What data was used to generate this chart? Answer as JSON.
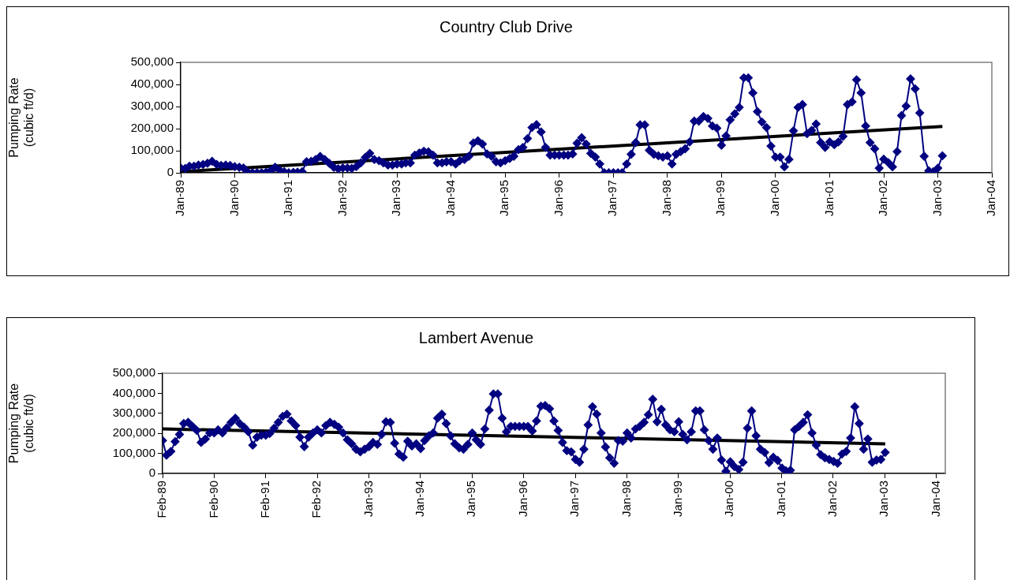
{
  "chart_data": [
    {
      "type": "line",
      "title": "Country Club Drive",
      "ylabel": "Pumping Rate\n(cubic ft/d)",
      "grid": false,
      "legend": false,
      "x": [
        "1989-01",
        "1989-02",
        "1989-03",
        "1989-04",
        "1989-05",
        "1989-06",
        "1989-07",
        "1989-08",
        "1989-09",
        "1989-10",
        "1989-11",
        "1989-12",
        "1990-01",
        "1990-02",
        "1990-03",
        "1990-04",
        "1990-05",
        "1990-06",
        "1990-07",
        "1990-08",
        "1990-09",
        "1990-10",
        "1990-11",
        "1990-12",
        "1991-01",
        "1991-02",
        "1991-03",
        "1991-04",
        "1991-05",
        "1991-06",
        "1991-07",
        "1991-08",
        "1991-09",
        "1991-10",
        "1991-11",
        "1991-12",
        "1992-01",
        "1992-02",
        "1992-03",
        "1992-04",
        "1992-05",
        "1992-06",
        "1992-07",
        "1992-08",
        "1992-09",
        "1992-10",
        "1992-11",
        "1992-12",
        "1993-01",
        "1993-02",
        "1993-03",
        "1993-04",
        "1993-05",
        "1993-06",
        "1993-07",
        "1993-08",
        "1993-09",
        "1993-10",
        "1993-11",
        "1993-12",
        "1994-01",
        "1994-02",
        "1994-03",
        "1994-04",
        "1994-05",
        "1994-06",
        "1994-07",
        "1994-08",
        "1994-09",
        "1994-10",
        "1994-11",
        "1994-12",
        "1995-01",
        "1995-02",
        "1995-03",
        "1995-04",
        "1995-05",
        "1995-06",
        "1995-07",
        "1995-08",
        "1995-09",
        "1995-10",
        "1995-11",
        "1995-12",
        "1996-01",
        "1996-02",
        "1996-03",
        "1996-04",
        "1996-05",
        "1996-06",
        "1996-07",
        "1996-08",
        "1996-09",
        "1996-10",
        "1996-11",
        "1996-12",
        "1997-01",
        "1997-02",
        "1997-03",
        "1997-04",
        "1997-05",
        "1997-06",
        "1997-07",
        "1997-08",
        "1997-09",
        "1997-10",
        "1997-11",
        "1997-12",
        "1998-01",
        "1998-02",
        "1998-03",
        "1998-04",
        "1998-05",
        "1998-06",
        "1998-07",
        "1998-08",
        "1998-09",
        "1998-10",
        "1998-11",
        "1998-12",
        "1999-01",
        "1999-02",
        "1999-03",
        "1999-04",
        "1999-05",
        "1999-06",
        "1999-07",
        "1999-08",
        "1999-09",
        "1999-10",
        "1999-11",
        "1999-12",
        "2000-01",
        "2000-02",
        "2000-03",
        "2000-04",
        "2000-05",
        "2000-06",
        "2000-07",
        "2000-08",
        "2000-09",
        "2000-10",
        "2000-11",
        "2000-12",
        "2001-01",
        "2001-02",
        "2001-03",
        "2001-04",
        "2001-05",
        "2001-06",
        "2001-07",
        "2001-08",
        "2001-09",
        "2001-10",
        "2001-11",
        "2001-12",
        "2002-01",
        "2002-02",
        "2002-03",
        "2002-04",
        "2002-05",
        "2002-06",
        "2002-07",
        "2002-08",
        "2002-09",
        "2002-10",
        "2002-11",
        "2002-12",
        "2003-01",
        "2003-02"
      ],
      "xlim": [
        "1989-01",
        "2004-01"
      ],
      "xticks": [
        {
          "value": "1989-01",
          "label": "Jan-89"
        },
        {
          "value": "1990-01",
          "label": "Jan-90"
        },
        {
          "value": "1991-01",
          "label": "Jan-91"
        },
        {
          "value": "1992-01",
          "label": "Jan-92"
        },
        {
          "value": "1993-01",
          "label": "Jan-93"
        },
        {
          "value": "1994-01",
          "label": "Jan-94"
        },
        {
          "value": "1995-01",
          "label": "Jan-95"
        },
        {
          "value": "1996-01",
          "label": "Jan-96"
        },
        {
          "value": "1997-01",
          "label": "Jan-97"
        },
        {
          "value": "1998-01",
          "label": "Jan-98"
        },
        {
          "value": "1999-01",
          "label": "Jan-99"
        },
        {
          "value": "2000-01",
          "label": "Jan-00"
        },
        {
          "value": "2001-01",
          "label": "Jan-01"
        },
        {
          "value": "2002-01",
          "label": "Jan-02"
        },
        {
          "value": "2003-01",
          "label": "Jan-03"
        },
        {
          "value": "2004-01",
          "label": "Jan-04"
        }
      ],
      "ylim": [
        0,
        500000
      ],
      "yticks": [
        0,
        {
          "value": 100000,
          "label": "100,000"
        },
        {
          "value": 200000,
          "label": "200,000"
        },
        {
          "value": 300000,
          "label": "300,000"
        },
        {
          "value": 400000,
          "label": "400,000"
        },
        {
          "value": 500000,
          "label": "500,000"
        }
      ],
      "series": [
        {
          "color": "#000080",
          "marker": "diamond",
          "values": [
            22000,
            20000,
            30000,
            30000,
            35000,
            38000,
            43000,
            52000,
            38000,
            33000,
            35000,
            33000,
            28000,
            25000,
            22000,
            2000,
            0,
            0,
            0,
            3000,
            10000,
            25000,
            12000,
            5000,
            0,
            2000,
            3000,
            5000,
            50000,
            52000,
            60000,
            74000,
            60000,
            43000,
            25000,
            18000,
            22000,
            22000,
            20000,
            28000,
            45000,
            70000,
            88000,
            60000,
            55000,
            45000,
            35000,
            35000,
            40000,
            40000,
            45000,
            45000,
            80000,
            90000,
            98000,
            95000,
            80000,
            45000,
            45000,
            50000,
            50000,
            40000,
            55000,
            60000,
            75000,
            135000,
            145000,
            130000,
            85000,
            75000,
            50000,
            45000,
            55000,
            65000,
            75000,
            105000,
            115000,
            155000,
            205000,
            218000,
            185000,
            115000,
            80000,
            80000,
            80000,
            80000,
            80000,
            85000,
            134000,
            159000,
            130000,
            88000,
            71000,
            40000,
            0,
            0,
            0,
            0,
            0,
            40000,
            84000,
            137000,
            217000,
            217000,
            102000,
            84000,
            77000,
            71000,
            77000,
            40000,
            84000,
            96000,
            109000,
            140000,
            234000,
            234000,
            255000,
            246000,
            212000,
            202000,
            125000,
            167000,
            240000,
            267000,
            296000,
            430000,
            430000,
            362000,
            277000,
            230000,
            205000,
            121000,
            71000,
            71000,
            27000,
            61000,
            190000,
            296000,
            309000,
            177000,
            192000,
            221000,
            137000,
            115000,
            140000,
            127000,
            140000,
            165000,
            309000,
            321000,
            421000,
            362000,
            212000,
            137000,
            109000,
            21000,
            62000,
            46000,
            27000,
            96000,
            259000,
            302000,
            425000,
            380000,
            271000,
            75000,
            9000,
            5000,
            21000,
            77000
          ]
        },
        {
          "type": "line",
          "color": "#000000",
          "marker": "none",
          "x": [
            "1989-01",
            "2003-02"
          ],
          "values": [
            5000,
            210000
          ]
        }
      ]
    },
    {
      "type": "line",
      "title": "Lambert Avenue",
      "ylabel": "Pumping Rate\n(cubic ft/d)",
      "grid": false,
      "legend": false,
      "x": [
        "1989-02",
        "1989-03",
        "1989-04",
        "1989-05",
        "1989-06",
        "1989-07",
        "1989-08",
        "1989-09",
        "1989-10",
        "1989-11",
        "1989-12",
        "1990-01",
        "1990-02",
        "1990-03",
        "1990-04",
        "1990-05",
        "1990-06",
        "1990-07",
        "1990-08",
        "1990-09",
        "1990-10",
        "1990-11",
        "1990-12",
        "1991-01",
        "1991-02",
        "1991-03",
        "1991-04",
        "1991-05",
        "1991-06",
        "1991-07",
        "1991-08",
        "1991-09",
        "1991-10",
        "1991-11",
        "1991-12",
        "1992-01",
        "1992-02",
        "1992-03",
        "1992-04",
        "1992-05",
        "1992-06",
        "1992-07",
        "1992-08",
        "1992-09",
        "1992-10",
        "1992-11",
        "1992-12",
        "1993-01",
        "1993-02",
        "1993-03",
        "1993-04",
        "1993-05",
        "1993-06",
        "1993-07",
        "1993-08",
        "1993-09",
        "1993-10",
        "1993-11",
        "1993-12",
        "1994-01",
        "1994-02",
        "1994-03",
        "1994-04",
        "1994-05",
        "1994-06",
        "1994-07",
        "1994-08",
        "1994-09",
        "1994-10",
        "1994-11",
        "1994-12",
        "1995-01",
        "1995-02",
        "1995-03",
        "1995-04",
        "1995-05",
        "1995-06",
        "1995-07",
        "1995-08",
        "1995-09",
        "1995-10",
        "1995-11",
        "1995-12",
        "1996-01",
        "1996-02",
        "1996-03",
        "1996-04",
        "1996-05",
        "1996-06",
        "1996-07",
        "1996-08",
        "1996-09",
        "1996-10",
        "1996-11",
        "1996-12",
        "1997-01",
        "1997-02",
        "1997-03",
        "1997-04",
        "1997-05",
        "1997-06",
        "1997-07",
        "1997-08",
        "1997-09",
        "1997-10",
        "1997-11",
        "1997-12",
        "1998-01",
        "1998-02",
        "1998-03",
        "1998-04",
        "1998-05",
        "1998-06",
        "1998-07",
        "1998-08",
        "1998-09",
        "1998-10",
        "1998-11",
        "1998-12",
        "1999-01",
        "1999-02",
        "1999-03",
        "1999-04",
        "1999-05",
        "1999-06",
        "1999-07",
        "1999-08",
        "1999-09",
        "1999-10",
        "1999-11",
        "1999-12",
        "2000-01",
        "2000-02",
        "2000-03",
        "2000-04",
        "2000-05",
        "2000-06",
        "2000-07",
        "2000-08",
        "2000-09",
        "2000-10",
        "2000-11",
        "2000-12",
        "2001-01",
        "2001-02",
        "2001-03",
        "2001-04",
        "2001-05",
        "2001-06",
        "2001-07",
        "2001-08",
        "2001-09",
        "2001-10",
        "2001-11",
        "2001-12",
        "2002-01",
        "2002-02",
        "2002-03",
        "2002-04",
        "2002-05",
        "2002-06",
        "2002-07",
        "2002-08",
        "2002-09",
        "2002-10",
        "2002-11",
        "2002-12",
        "2003-01",
        "2003-02"
      ],
      "xlim": [
        "1989-02-01",
        "2004-04"
      ],
      "xticks": [
        {
          "value": "1989-02-01",
          "label": "Feb-89"
        },
        {
          "value": "1990-02-01",
          "label": "Feb-90"
        },
        {
          "value": "1991-02-01",
          "label": "Feb-91"
        },
        {
          "value": "1992-02-01",
          "label": "Feb-92"
        },
        {
          "value": "1993-01-31",
          "label": "Jan-93"
        },
        {
          "value": "1994-01-31",
          "label": "Jan-94"
        },
        {
          "value": "1995-01-31",
          "label": "Jan-95"
        },
        {
          "value": "1996-01-31",
          "label": "Jan-96"
        },
        {
          "value": "1997-01-30",
          "label": "Jan-97"
        },
        {
          "value": "1998-01-30",
          "label": "Jan-98"
        },
        {
          "value": "1999-01-30",
          "label": "Jan-99"
        },
        {
          "value": "2000-01-30",
          "label": "Jan-00"
        },
        {
          "value": "2001-01-29",
          "label": "Jan-01"
        },
        {
          "value": "2002-01-29",
          "label": "Jan-02"
        },
        {
          "value": "2003-01-29",
          "label": "Jan-03"
        },
        {
          "value": "2004-01-29",
          "label": "Jan-04"
        }
      ],
      "ylim": [
        0,
        500000
      ],
      "yticks": [
        0,
        {
          "value": 100000,
          "label": "100,000"
        },
        {
          "value": 200000,
          "label": "200,000"
        },
        {
          "value": 300000,
          "label": "300,000"
        },
        {
          "value": 400000,
          "label": "400,000"
        },
        {
          "value": 500000,
          "label": "500,000"
        }
      ],
      "series": [
        {
          "color": "#000080",
          "marker": "diamond",
          "values": [
            164000,
            91000,
            110000,
            159000,
            195000,
            249000,
            255000,
            235000,
            215000,
            155000,
            172000,
            202000,
            202000,
            218000,
            202000,
            228000,
            255000,
            276000,
            249000,
            231000,
            208000,
            141000,
            181000,
            191000,
            191000,
            199000,
            226000,
            255000,
            285000,
            296000,
            262000,
            239000,
            181000,
            134000,
            181000,
            202000,
            218000,
            202000,
            239000,
            255000,
            245000,
            231000,
            202000,
            168000,
            148000,
            121000,
            108000,
            121000,
            134000,
            155000,
            145000,
            195000,
            258000,
            255000,
            151000,
            97000,
            81000,
            161000,
            137000,
            148000,
            124000,
            164000,
            188000,
            202000,
            276000,
            296000,
            249000,
            188000,
            148000,
            128000,
            121000,
            145000,
            202000,
            168000,
            145000,
            222000,
            316000,
            397000,
            397000,
            276000,
            208000,
            235000,
            235000,
            235000,
            235000,
            235000,
            212000,
            262000,
            336000,
            339000,
            323000,
            262000,
            215000,
            155000,
            114000,
            108000,
            70000,
            56000,
            121000,
            242000,
            333000,
            296000,
            202000,
            132000,
            78000,
            51000,
            164000,
            161000,
            202000,
            177000,
            222000,
            235000,
            255000,
            293000,
            370000,
            258000,
            320000,
            242000,
            218000,
            208000,
            258000,
            195000,
            168000,
            208000,
            312000,
            312000,
            218000,
            164000,
            121000,
            177000,
            67000,
            11000,
            58000,
            34000,
            20000,
            56000,
            226000,
            312000,
            188000,
            121000,
            105000,
            54000,
            81000,
            65000,
            27000,
            13000,
            16000,
            218000,
            235000,
            255000,
            293000,
            202000,
            141000,
            94000,
            78000,
            70000,
            60000,
            51000,
            97000,
            110000,
            177000,
            333000,
            249000,
            121000,
            172000,
            56000,
            67000,
            70000,
            105000
          ]
        },
        {
          "type": "line",
          "color": "#000000",
          "marker": "none",
          "x": [
            "1989-02",
            "2003-02"
          ],
          "values": [
            222000,
            148000
          ]
        }
      ]
    }
  ]
}
